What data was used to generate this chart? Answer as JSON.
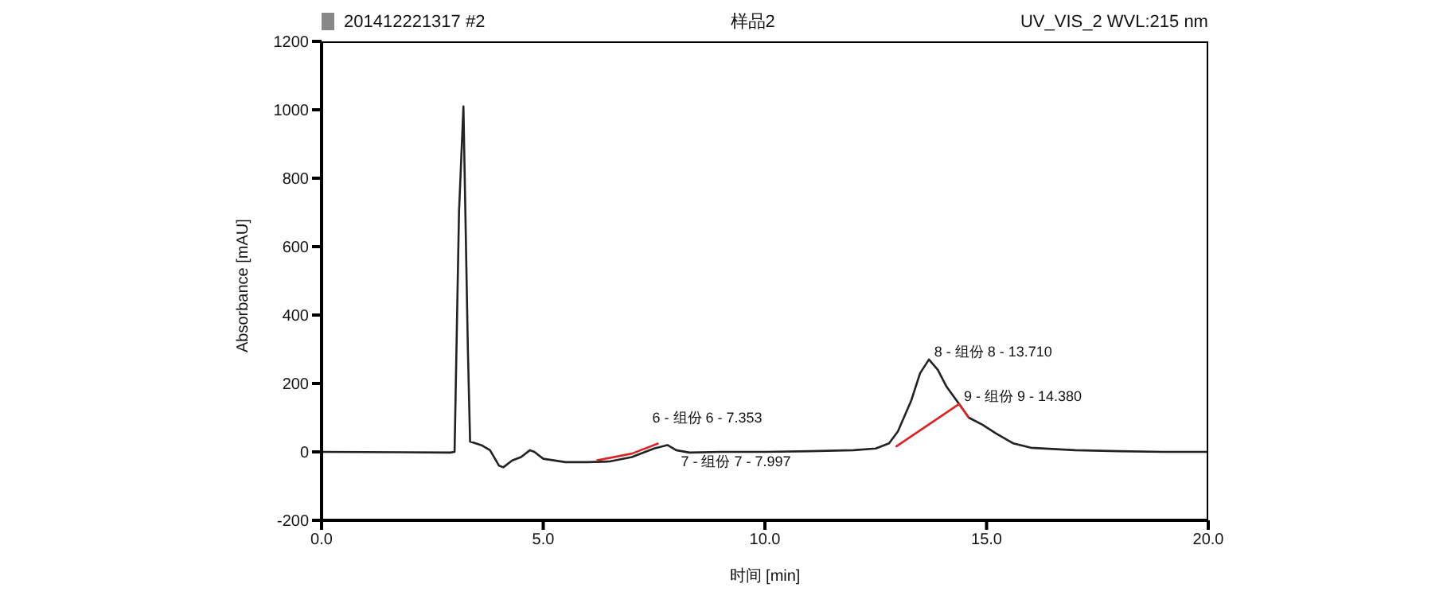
{
  "chart_data": {
    "type": "line",
    "title": "样品2",
    "xlabel": "时间 [min]",
    "ylabel": "Absorbance [mAU]",
    "annotations": [
      "201412221317 #2",
      "UV_VIS_2 WVL:215 nm",
      {
        "text": "6 - 组份 6 - 7.353",
        "x": 7.353,
        "y": 20
      },
      {
        "text": "7 - 组份 7 - 7.997",
        "x": 7.997,
        "y": 5
      },
      {
        "text": "8 - 组份 8 - 13.710",
        "x": 13.71,
        "y": 270
      },
      {
        "text": "9 - 组份 9 - 14.380",
        "x": 14.38,
        "y": 140
      }
    ],
    "xlim": [
      0,
      20
    ],
    "xticks": [
      {
        "value": 0,
        "label": "0.0"
      },
      {
        "value": 5,
        "label": "5.0"
      },
      {
        "value": 10,
        "label": "10.0"
      },
      {
        "value": 15,
        "label": "15.0"
      },
      {
        "value": 20,
        "label": "20.0"
      }
    ],
    "ylim": [
      -200,
      1200
    ],
    "yticks": [
      -200,
      0,
      200,
      400,
      600,
      800,
      1000,
      1200
    ],
    "grid": false,
    "marker": "none",
    "line_style": "solid",
    "series": [
      {
        "color": "#222222",
        "x": [
          0,
          2.9,
          3.0,
          3.1,
          3.2,
          3.3,
          3.35,
          3.6,
          3.8,
          4.0,
          4.1,
          4.3,
          4.5,
          4.7,
          4.8,
          5.0,
          5.5,
          6.0,
          6.5,
          7.0,
          7.3,
          7.5,
          7.8,
          8.0,
          8.3,
          9,
          10,
          11,
          12,
          12.5,
          12.8,
          13.0,
          13.3,
          13.5,
          13.7,
          13.9,
          14.1,
          14.38,
          14.6,
          14.9,
          15.2,
          15.6,
          16,
          17,
          18,
          19,
          20
        ],
        "values": [
          0,
          -2,
          0,
          700,
          1010,
          300,
          30,
          20,
          5,
          -40,
          -45,
          -25,
          -15,
          5,
          0,
          -20,
          -30,
          -30,
          -28,
          -15,
          0,
          10,
          20,
          5,
          -2,
          0,
          0,
          2,
          5,
          10,
          25,
          60,
          150,
          230,
          270,
          240,
          190,
          140,
          100,
          80,
          55,
          25,
          12,
          5,
          2,
          0,
          0
        ]
      },
      {
        "color": "#dd2222",
        "x": [
          12.95,
          14.38,
          14.6
        ],
        "values": [
          15,
          140,
          100
        ]
      },
      {
        "color": "#dd2222",
        "x": [
          6.2,
          7.0,
          7.6
        ],
        "values": [
          -25,
          -5,
          25
        ]
      }
    ]
  }
}
